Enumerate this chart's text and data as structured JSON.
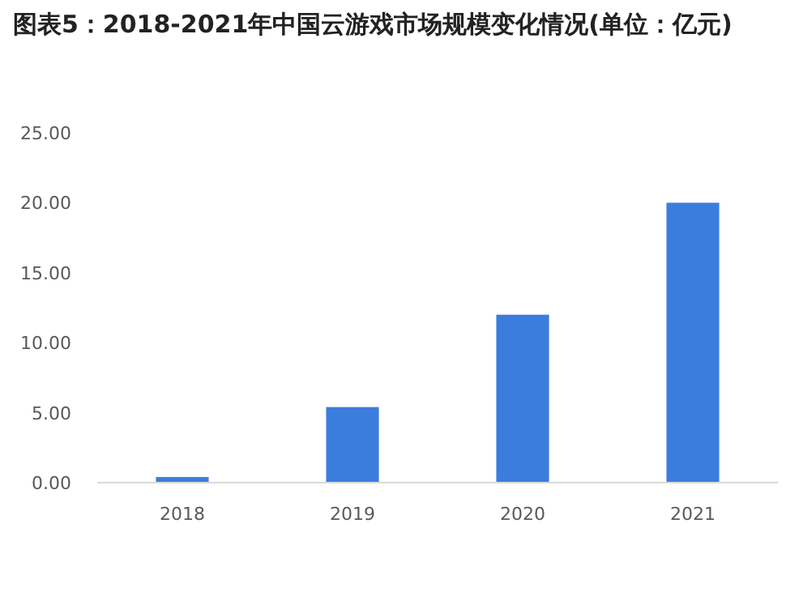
{
  "chart_data": {
    "type": "bar",
    "title": "图表5：2018-2021年中国云游戏市场规模变化情况(单位：亿元)",
    "categories": [
      "2018",
      "2019",
      "2020",
      "2021"
    ],
    "values": [
      0.4,
      5.4,
      12.0,
      20.0
    ],
    "color": "#3b7ddd",
    "ylim": [
      0,
      25
    ],
    "yticks": [
      {
        "value": 0,
        "label": "0.00"
      },
      {
        "value": 5,
        "label": "5.00"
      },
      {
        "value": 10,
        "label": "10.00"
      },
      {
        "value": 15,
        "label": "15.00"
      },
      {
        "value": 20,
        "label": "20.00"
      },
      {
        "value": 25,
        "label": "25.00"
      }
    ],
    "grid": false
  }
}
